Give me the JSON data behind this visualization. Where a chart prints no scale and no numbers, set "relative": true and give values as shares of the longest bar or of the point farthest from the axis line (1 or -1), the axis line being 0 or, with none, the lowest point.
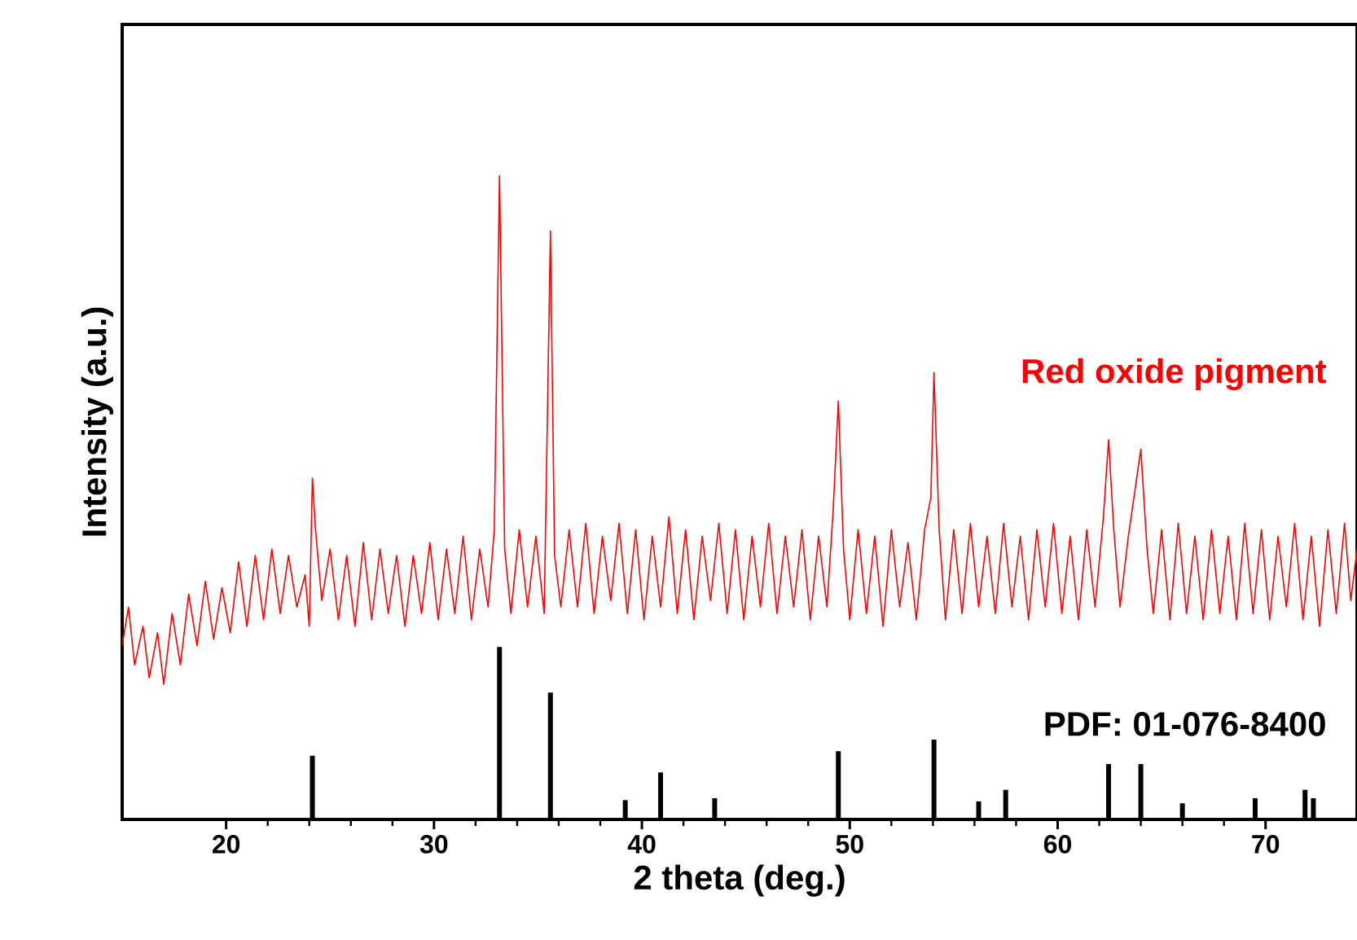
{
  "chart_data": {
    "type": "line",
    "relative": true,
    "xlabel": "2 theta (deg.)",
    "ylabel": "Intensity (a.u.)",
    "xlim": [
      15,
      74.4
    ],
    "xticks": [
      20,
      30,
      40,
      50,
      60,
      70
    ],
    "marker": "none",
    "series": [
      {
        "name": "Red oxide pigment",
        "color": "#ff0000",
        "x": [
          15.0,
          15.3,
          15.6,
          16.0,
          16.3,
          16.7,
          17.0,
          17.4,
          17.8,
          18.2,
          18.6,
          19.0,
          19.4,
          19.8,
          20.2,
          20.6,
          21.0,
          21.4,
          21.8,
          22.2,
          22.6,
          23.0,
          23.4,
          23.8,
          24.0,
          24.15,
          24.3,
          24.6,
          25.0,
          25.4,
          25.8,
          26.2,
          26.6,
          27.0,
          27.4,
          27.8,
          28.2,
          28.6,
          29.0,
          29.4,
          29.8,
          30.2,
          30.6,
          31.0,
          31.4,
          31.8,
          32.2,
          32.6,
          32.9,
          33.15,
          33.4,
          33.7,
          34.1,
          34.5,
          34.9,
          35.3,
          35.6,
          35.8,
          36.1,
          36.5,
          36.9,
          37.3,
          37.7,
          38.1,
          38.5,
          38.9,
          39.3,
          39.7,
          40.1,
          40.5,
          40.9,
          41.3,
          41.7,
          42.1,
          42.5,
          42.9,
          43.3,
          43.7,
          44.1,
          44.5,
          44.9,
          45.3,
          45.7,
          46.1,
          46.5,
          46.9,
          47.3,
          47.7,
          48.1,
          48.5,
          48.9,
          49.2,
          49.45,
          49.7,
          50.0,
          50.4,
          50.8,
          51.2,
          51.6,
          52.0,
          52.4,
          52.8,
          53.2,
          53.6,
          53.9,
          54.05,
          54.3,
          54.6,
          55.0,
          55.4,
          55.8,
          56.2,
          56.6,
          57.0,
          57.4,
          57.8,
          58.2,
          58.6,
          59.0,
          59.4,
          59.8,
          60.2,
          60.6,
          61.0,
          61.4,
          61.8,
          62.2,
          62.45,
          62.7,
          63.0,
          63.4,
          64.0,
          64.3,
          64.6,
          65.0,
          65.4,
          65.8,
          66.2,
          66.6,
          67.0,
          67.4,
          67.8,
          68.2,
          68.6,
          69.0,
          69.4,
          69.8,
          70.2,
          70.6,
          71.0,
          71.4,
          71.8,
          72.2,
          72.6,
          73.0,
          73.4,
          73.8,
          74.1,
          74.4
        ],
        "values": [
          0.27,
          0.33,
          0.24,
          0.3,
          0.22,
          0.29,
          0.21,
          0.32,
          0.24,
          0.35,
          0.27,
          0.37,
          0.28,
          0.36,
          0.29,
          0.4,
          0.3,
          0.41,
          0.31,
          0.42,
          0.32,
          0.41,
          0.33,
          0.38,
          0.3,
          0.53,
          0.45,
          0.34,
          0.42,
          0.31,
          0.41,
          0.3,
          0.43,
          0.31,
          0.42,
          0.32,
          0.41,
          0.3,
          0.41,
          0.32,
          0.43,
          0.31,
          0.42,
          0.32,
          0.44,
          0.31,
          0.42,
          0.33,
          0.45,
          1.0,
          0.42,
          0.32,
          0.45,
          0.33,
          0.44,
          0.32,
          0.914,
          0.41,
          0.33,
          0.45,
          0.33,
          0.46,
          0.32,
          0.44,
          0.34,
          0.46,
          0.32,
          0.45,
          0.31,
          0.44,
          0.33,
          0.47,
          0.32,
          0.45,
          0.31,
          0.44,
          0.34,
          0.46,
          0.32,
          0.45,
          0.31,
          0.44,
          0.33,
          0.46,
          0.32,
          0.44,
          0.33,
          0.45,
          0.31,
          0.44,
          0.33,
          0.48,
          0.65,
          0.42,
          0.31,
          0.45,
          0.32,
          0.44,
          0.3,
          0.45,
          0.33,
          0.43,
          0.31,
          0.45,
          0.5,
          0.694,
          0.45,
          0.31,
          0.45,
          0.32,
          0.46,
          0.33,
          0.44,
          0.32,
          0.46,
          0.33,
          0.44,
          0.31,
          0.45,
          0.33,
          0.46,
          0.32,
          0.44,
          0.31,
          0.45,
          0.33,
          0.47,
          0.59,
          0.45,
          0.33,
          0.44,
          0.575,
          0.42,
          0.32,
          0.45,
          0.31,
          0.46,
          0.32,
          0.44,
          0.31,
          0.45,
          0.32,
          0.44,
          0.31,
          0.46,
          0.32,
          0.45,
          0.31,
          0.44,
          0.33,
          0.46,
          0.31,
          0.44,
          0.3,
          0.45,
          0.32,
          0.46,
          0.34,
          0.42
        ]
      },
      {
        "name": "PDF: 01-076-8400",
        "type": "bar",
        "color": "#000000",
        "x": [
          24.15,
          33.15,
          35.6,
          39.2,
          40.9,
          43.5,
          49.45,
          54.05,
          56.2,
          57.5,
          62.45,
          64.0,
          66.0,
          69.5,
          71.9,
          72.3
        ],
        "values": [
          0.099,
          0.268,
          0.197,
          0.03,
          0.073,
          0.033,
          0.106,
          0.124,
          0.028,
          0.046,
          0.086,
          0.086,
          0.025,
          0.033,
          0.046,
          0.033
        ]
      }
    ]
  }
}
